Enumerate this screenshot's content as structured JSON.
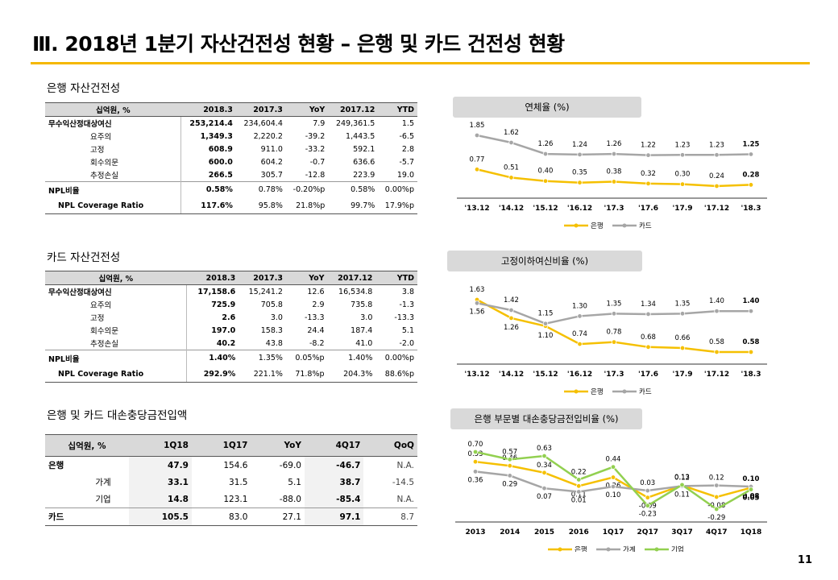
{
  "title": "Ⅲ. 2018년 1분기 자산건전성 현황 – 은행 및 카드 건전성 현황",
  "page_number": "11",
  "bank_table": {
    "label": "은행 자산건전성",
    "headers": [
      "십억원, %",
      "2018.3",
      "2017.3",
      "YoY",
      "2017.12",
      "YTD"
    ],
    "rows": [
      {
        "name": "무수익산정대상여신",
        "v": [
          "253,214.4",
          "234,604.4",
          "7.9",
          "249,361.5",
          "1.5"
        ]
      },
      {
        "name": "요주의",
        "v": [
          "1,349.3",
          "2,220.2",
          "-39.2",
          "1,443.5",
          "-6.5"
        ]
      },
      {
        "name": "고정",
        "v": [
          "608.9",
          "911.0",
          "-33.2",
          "592.1",
          "2.8"
        ]
      },
      {
        "name": "회수의문",
        "v": [
          "600.0",
          "604.2",
          "-0.7",
          "636.6",
          "-5.7"
        ]
      },
      {
        "name": "추정손실",
        "v": [
          "266.5",
          "305.7",
          "-12.8",
          "223.9",
          "19.0"
        ]
      },
      {
        "name": "NPL비율",
        "v": [
          "0.58%",
          "0.78%",
          "-0.20%p",
          "0.58%",
          "0.00%p"
        ]
      },
      {
        "name": "NPL Coverage Ratio",
        "v": [
          "117.6%",
          "95.8%",
          "21.8%p",
          "99.7%",
          "17.9%p"
        ]
      }
    ]
  },
  "card_table": {
    "label": "카드 자산건전성",
    "headers": [
      "십억원, %",
      "2018.3",
      "2017.3",
      "YoY",
      "2017.12",
      "YTD"
    ],
    "rows": [
      {
        "name": "무수익산정대상여신",
        "v": [
          "17,158.6",
          "15,241.2",
          "12.6",
          "16,534.8",
          "3.8"
        ]
      },
      {
        "name": "요주의",
        "v": [
          "725.9",
          "705.8",
          "2.9",
          "735.8",
          "-1.3"
        ]
      },
      {
        "name": "고정",
        "v": [
          "2.6",
          "3.0",
          "-13.3",
          "3.0",
          "-13.3"
        ]
      },
      {
        "name": "회수의문",
        "v": [
          "197.0",
          "158.3",
          "24.4",
          "187.4",
          "5.1"
        ]
      },
      {
        "name": "추정손실",
        "v": [
          "40.2",
          "43.8",
          "-8.2",
          "41.0",
          "-2.0"
        ]
      },
      {
        "name": "NPL비율",
        "v": [
          "1.40%",
          "1.35%",
          "0.05%p",
          "1.40%",
          "0.00%p"
        ]
      },
      {
        "name": "NPL Coverage Ratio",
        "v": [
          "292.9%",
          "221.1%",
          "71.8%p",
          "204.3%",
          "88.6%p"
        ]
      }
    ]
  },
  "provision_table": {
    "label": "은행 및 카드 대손충당금전입액",
    "headers": [
      "십억원, %",
      "1Q18",
      "1Q17",
      "YoY",
      "4Q17",
      "QoQ"
    ],
    "rows": [
      {
        "name": "은행",
        "sub": "",
        "v": [
          "47.9",
          "154.6",
          "-69.0",
          "-46.7",
          "N.A."
        ]
      },
      {
        "name": "",
        "sub": "가계",
        "v": [
          "33.1",
          "31.5",
          "5.1",
          "38.7",
          "-14.5"
        ]
      },
      {
        "name": "",
        "sub": "기업",
        "v": [
          "14.8",
          "123.1",
          "-88.0",
          "-85.4",
          "N.A."
        ]
      },
      {
        "name": "카드",
        "sub": "",
        "v": [
          "105.5",
          "83.0",
          "27.1",
          "97.1",
          "8.7"
        ]
      }
    ]
  },
  "chart_data": [
    {
      "type": "line",
      "title": "연체율 (%)",
      "x": [
        "'13.12",
        "'14.12",
        "'15.12",
        "'16.12",
        "'17.3",
        "'17.6",
        "'17.9",
        "'17.12",
        "'18.3"
      ],
      "series": [
        {
          "name": "은행",
          "color": "#f5c000",
          "values": [
            0.77,
            0.51,
            0.4,
            0.35,
            0.38,
            0.32,
            0.3,
            0.24,
            0.28
          ]
        },
        {
          "name": "카드",
          "color": "#a6a6a6",
          "values": [
            1.85,
            1.62,
            1.26,
            1.24,
            1.26,
            1.22,
            1.23,
            1.23,
            1.25
          ]
        }
      ]
    },
    {
      "type": "line",
      "title": "고정이하여신비율 (%)",
      "x": [
        "'13.12",
        "'14.12",
        "'15.12",
        "'16.12",
        "'17.3",
        "'17.6",
        "'17.9",
        "'17.12",
        "'18.3"
      ],
      "series": [
        {
          "name": "은행",
          "color": "#f5c000",
          "values": [
            1.63,
            1.26,
            1.1,
            0.74,
            0.78,
            0.68,
            0.66,
            0.58,
            0.58
          ]
        },
        {
          "name": "카드",
          "color": "#a6a6a6",
          "values": [
            1.56,
            1.42,
            1.15,
            1.3,
            1.35,
            1.34,
            1.35,
            1.4,
            1.4
          ]
        }
      ]
    },
    {
      "type": "line",
      "title": "은행 부문별 대손충당금전입비율 (%)",
      "x": [
        "2013",
        "2014",
        "2015",
        "2016",
        "1Q17",
        "2Q17",
        "3Q17",
        "4Q17",
        "1Q18"
      ],
      "series": [
        {
          "name": "은행",
          "color": "#f5c000",
          "values": [
            0.53,
            0.46,
            0.34,
            0.11,
            0.26,
            -0.09,
            0.12,
            -0.08,
            0.08
          ]
        },
        {
          "name": "가계",
          "color": "#a6a6a6",
          "values": [
            0.36,
            0.29,
            0.07,
            0.01,
            0.1,
            0.03,
            0.11,
            0.12,
            0.1
          ]
        },
        {
          "name": "기업",
          "color": "#92d050",
          "values": [
            0.7,
            0.57,
            0.63,
            0.22,
            0.44,
            -0.23,
            0.13,
            -0.29,
            0.05
          ]
        }
      ]
    }
  ]
}
